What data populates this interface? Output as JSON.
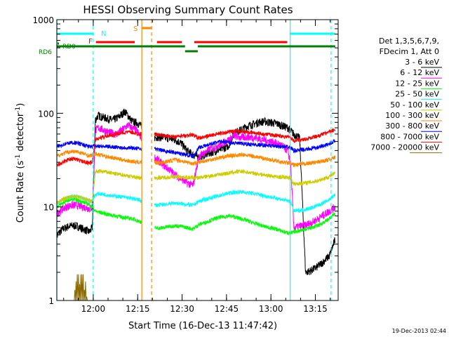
{
  "chart_data": {
    "type": "line",
    "title": "HESSI Observing Summary Count Rates",
    "xlabel": "Start Time (16-Dec-13 11:47:42)",
    "ylabel_main": "Count Rate (s",
    "ylabel_sup1": "-1",
    "ylabel_mid": " detector",
    "ylabel_sup2": "-1",
    "ylabel_end": ")",
    "footer": "19-Dec-2013 02:44",
    "y_scale": "log",
    "ylim": [
      1,
      1000
    ],
    "xlim_minutes": [
      0,
      95
    ],
    "x_ticks": [
      {
        "label": "12:00",
        "minute": 12.3
      },
      {
        "label": "12:15",
        "minute": 27.3
      },
      {
        "label": "12:30",
        "minute": 42.3
      },
      {
        "label": "12:45",
        "minute": 57.3
      },
      {
        "label": "13:00",
        "minute": 72.3
      },
      {
        "label": "13:15",
        "minute": 87.3
      }
    ],
    "y_ticks": [
      {
        "label": "1",
        "value": 1
      },
      {
        "label": "10",
        "value": 10
      },
      {
        "label": "100",
        "value": 100
      },
      {
        "label": "1000",
        "value": 1000
      }
    ],
    "legend_header": [
      "Det 1,3,5,6,7,9,",
      "FDecim 1, Att 0"
    ],
    "series": [
      {
        "name": "3 - 6 keV",
        "color": "#000000",
        "x": [
          0,
          1,
          2,
          3,
          4,
          5,
          6,
          7,
          8,
          9,
          10,
          11,
          12,
          13,
          14,
          15,
          16,
          17,
          18,
          19,
          20,
          21,
          22,
          23,
          24,
          25,
          26,
          27,
          33,
          34,
          36,
          38,
          40,
          42,
          44,
          46,
          48,
          50,
          52,
          54,
          56,
          58,
          60,
          62,
          64,
          66,
          68,
          70,
          72,
          74,
          76,
          78,
          79,
          80,
          82,
          84,
          86,
          88,
          90,
          92,
          94
        ],
        "y": [
          5,
          5.4,
          5.8,
          6,
          6.2,
          6.3,
          6.3,
          6.2,
          6,
          5.8,
          5.6,
          5.4,
          6,
          85,
          95,
          92,
          90,
          88,
          86,
          85,
          88,
          92,
          98,
          105,
          95,
          85,
          80,
          80,
          55,
          56,
          55,
          54,
          52,
          48,
          40,
          36,
          34,
          36,
          38,
          40,
          42,
          45,
          62,
          66,
          72,
          76,
          80,
          82,
          80,
          78,
          74,
          70,
          65,
          60,
          54,
          2,
          2.1,
          2.3,
          2.6,
          3,
          4.5
        ]
      },
      {
        "name": "6 - 12 keV",
        "color": "#ff00ff",
        "x": [
          0,
          1,
          2,
          3,
          4,
          5,
          6,
          7,
          8,
          9,
          10,
          11,
          12,
          13,
          14,
          16,
          18,
          20,
          22,
          24,
          26,
          27,
          33,
          34,
          36,
          38,
          40,
          42,
          44,
          46,
          48,
          50,
          52,
          54,
          56,
          58,
          60,
          62,
          64,
          66,
          68,
          70,
          72,
          74,
          76,
          78,
          79,
          80,
          82,
          84,
          86,
          88,
          90,
          92,
          94
        ],
        "y": [
          8.5,
          9,
          9.5,
          10,
          10.2,
          10.4,
          10.5,
          10.4,
          10.2,
          10,
          9.8,
          9.6,
          9.8,
          65,
          70,
          66,
          62,
          60,
          66,
          75,
          68,
          65,
          34,
          32,
          28,
          25,
          22,
          20,
          18,
          17,
          35,
          38,
          42,
          45,
          48,
          52,
          58,
          55,
          56,
          55,
          54,
          52,
          50,
          48,
          45,
          40,
          28,
          6,
          6.2,
          6.4,
          6.8,
          7.4,
          8.2,
          9,
          10
        ]
      },
      {
        "name": "12 - 25 keV",
        "color": "#00ff00",
        "x": [
          0,
          1,
          2,
          3,
          4,
          5,
          6,
          7,
          8,
          9,
          10,
          11,
          12,
          13,
          14,
          16,
          18,
          20,
          22,
          24,
          26,
          27,
          33,
          34,
          36,
          38,
          40,
          42,
          44,
          46,
          48,
          50,
          52,
          54,
          56,
          58,
          60,
          62,
          64,
          66,
          68,
          70,
          72,
          74,
          76,
          78,
          79,
          80,
          82,
          84,
          86,
          88,
          90,
          92,
          94
        ],
        "y": [
          10,
          10.5,
          11,
          11.5,
          11.8,
          12,
          12,
          11.8,
          11.5,
          11.2,
          11,
          10.5,
          10,
          9,
          8.8,
          8.5,
          8.2,
          8,
          7.8,
          7.6,
          7.4,
          7.2,
          6,
          5.9,
          6,
          6.2,
          6.3,
          6.2,
          6,
          5.8,
          6.5,
          6.8,
          7.2,
          7.6,
          7.8,
          8,
          7.8,
          7.5,
          7.2,
          6.8,
          6.5,
          6.2,
          6,
          5.8,
          5.5,
          5.3,
          5.2,
          5.4,
          5.6,
          5.8,
          6,
          6.3,
          6.8,
          7.5,
          8.5
        ]
      },
      {
        "name": "25 - 50 keV",
        "color": "#00ffff",
        "x": [
          0,
          1,
          2,
          3,
          4,
          5,
          6,
          7,
          8,
          9,
          10,
          11,
          12,
          13,
          14,
          16,
          18,
          20,
          22,
          24,
          26,
          27,
          33,
          34,
          36,
          38,
          40,
          42,
          44,
          46,
          48,
          50,
          52,
          54,
          56,
          58,
          60,
          62,
          64,
          66,
          68,
          70,
          72,
          74,
          76,
          78,
          79,
          80,
          82,
          84,
          86,
          88,
          90,
          92,
          94
        ],
        "y": [
          11,
          11.5,
          12,
          12.3,
          12.6,
          12.8,
          12.9,
          12.8,
          12.5,
          12.2,
          12,
          11.6,
          11.5,
          13.5,
          13.8,
          13.6,
          13.3,
          13,
          12.8,
          12.5,
          12.2,
          12,
          10.5,
          10.4,
          10.6,
          10.8,
          11,
          10.8,
          10.6,
          10.4,
          11.5,
          12,
          12.5,
          13,
          13.5,
          14,
          14.3,
          14.5,
          14.3,
          14,
          13.6,
          13.2,
          12.8,
          12.4,
          12,
          11.6,
          11.4,
          9,
          9.2,
          9.4,
          9.8,
          10.3,
          11,
          12,
          13.5
        ]
      },
      {
        "name": "50 - 100 keV",
        "color": "#cccc00",
        "x": [
          0,
          1,
          2,
          3,
          4,
          5,
          6,
          7,
          8,
          9,
          10,
          11,
          12,
          13,
          14,
          16,
          18,
          20,
          22,
          24,
          26,
          27,
          33,
          34,
          36,
          38,
          40,
          42,
          44,
          46,
          48,
          50,
          52,
          54,
          56,
          58,
          60,
          62,
          64,
          66,
          68,
          70,
          72,
          74,
          76,
          78,
          79,
          80,
          82,
          84,
          86,
          88,
          90,
          92,
          94
        ],
        "y": [
          11,
          11.5,
          12,
          12.3,
          12.6,
          12.8,
          12.9,
          12.8,
          12.5,
          12.2,
          12,
          11.6,
          11.5,
          23.5,
          24,
          23.8,
          23.2,
          22.5,
          22,
          21.5,
          21,
          20.5,
          20.5,
          20.4,
          20.6,
          20.8,
          21,
          20.8,
          20.6,
          20.4,
          20.5,
          21,
          21.5,
          22,
          22.5,
          23,
          23.5,
          24,
          23.5,
          23,
          22.5,
          22,
          21.5,
          21,
          20.8,
          20.6,
          20.5,
          17.5,
          17.8,
          18,
          18.5,
          19,
          20,
          21,
          23
        ]
      },
      {
        "name": "100 - 300 keV",
        "color": "#ff8800",
        "x": [
          0,
          1,
          2,
          3,
          4,
          5,
          6,
          7,
          8,
          9,
          10,
          11,
          12,
          13,
          14,
          16,
          18,
          20,
          22,
          24,
          26,
          27,
          33,
          34,
          36,
          38,
          40,
          42,
          44,
          46,
          48,
          50,
          52,
          54,
          56,
          58,
          60,
          62,
          64,
          66,
          68,
          70,
          72,
          74,
          76,
          78,
          79,
          80,
          82,
          84,
          86,
          88,
          90,
          92,
          94
        ],
        "y": [
          35,
          36,
          37,
          38,
          38.5,
          39,
          39,
          38.5,
          38,
          37,
          36,
          35,
          36,
          37,
          36.5,
          35,
          34,
          33,
          32,
          31,
          30.5,
          30,
          30,
          29.5,
          30,
          31,
          32,
          31,
          30,
          29,
          30,
          31,
          32,
          33,
          34,
          35,
          35.5,
          36,
          35.5,
          35,
          34,
          33,
          32,
          31,
          30,
          29.5,
          29,
          28,
          28.5,
          29,
          29.5,
          30,
          31,
          32,
          34
        ]
      },
      {
        "name": "300 - 800 keV",
        "color": "#0000ff",
        "x": [
          0,
          1,
          2,
          3,
          4,
          5,
          6,
          7,
          8,
          9,
          10,
          11,
          12,
          13,
          14,
          16,
          18,
          20,
          22,
          24,
          26,
          27,
          33,
          34,
          36,
          38,
          40,
          42,
          44,
          46,
          48,
          50,
          52,
          54,
          56,
          58,
          60,
          62,
          64,
          66,
          68,
          70,
          72,
          74,
          76,
          78,
          79,
          80,
          82,
          84,
          86,
          88,
          90,
          92,
          94
        ],
        "y": [
          44,
          45,
          46,
          47,
          48,
          48.5,
          48.5,
          48,
          47,
          46,
          45,
          44,
          44,
          45,
          45,
          44,
          44,
          43.5,
          43,
          43,
          42.5,
          42,
          42,
          41,
          40,
          39,
          38,
          37,
          36,
          35,
          43,
          45,
          47,
          49,
          50,
          49,
          48,
          47.5,
          47,
          46.5,
          46,
          45.5,
          45,
          44.5,
          44,
          43.5,
          43,
          40,
          40.5,
          41,
          42,
          43,
          45,
          47,
          51
        ]
      },
      {
        "name": "800 - 7000 keV",
        "color": "#ff0000",
        "x": [
          0,
          1,
          2,
          3,
          4,
          5,
          6,
          7,
          8,
          9,
          10,
          11,
          12,
          13,
          14,
          16,
          18,
          20,
          22,
          24,
          26,
          27,
          33,
          34,
          36,
          38,
          40,
          42,
          44,
          46,
          48,
          50,
          52,
          54,
          56,
          58,
          60,
          62,
          64,
          66,
          68,
          70,
          72,
          74,
          76,
          78,
          79,
          80,
          82,
          84,
          86,
          88,
          90,
          92,
          94
        ],
        "y": [
          28,
          29,
          30,
          31,
          32,
          32.5,
          32.5,
          32,
          31,
          30.5,
          30,
          29.5,
          30,
          52,
          54,
          56,
          58,
          60,
          62,
          63,
          62,
          60,
          60,
          59,
          58,
          57,
          56,
          57,
          58,
          59,
          54,
          56,
          58,
          60,
          62,
          63,
          64,
          64,
          63,
          62,
          61,
          60,
          59,
          58,
          57,
          56,
          55,
          51,
          52,
          53,
          55,
          57,
          60,
          63,
          67
        ]
      },
      {
        "name": "7000 - 20000 keV",
        "color": "#8b6b00",
        "x": [
          5.9,
          6.1,
          6.3,
          6.5,
          6.7,
          6.9,
          7.1,
          7.3,
          7.5,
          7.7,
          7.9,
          8.1,
          8.3,
          8.5,
          8.7,
          8.9,
          9.1,
          9.3,
          9.5,
          9.7,
          9.9,
          10.1,
          10.3,
          10.5
        ],
        "y": [
          1,
          1.3,
          1,
          1.6,
          1,
          1.9,
          1,
          1.9,
          1,
          1.5,
          1,
          1.9,
          1,
          1.9,
          1,
          1.9,
          1,
          1.3,
          1,
          1.6,
          1,
          1.1,
          1,
          1
        ]
      }
    ],
    "states": [
      {
        "label": "N",
        "color": "#00ffff",
        "segments": [
          [
            -1,
            12.3
          ],
          [
            78.8,
            94
          ]
        ]
      },
      {
        "label": "F",
        "color": "#ff0000",
        "segments": [
          [
            13.2,
            26.3
          ],
          [
            33.8,
            42.2
          ],
          [
            46.4,
            77.8
          ]
        ]
      },
      {
        "label": "S",
        "color": "#ff8800",
        "segments": [
          [
            28.7,
            32
          ]
        ]
      },
      {
        "label": "RD0",
        "color": "#008000",
        "segments": [
          [
            -1,
            0
          ]
        ]
      },
      {
        "label": "RD6",
        "color": "#008000",
        "segments": [
          [
            -1,
            12.3
          ],
          [
            12.3,
            43.3
          ],
          [
            47.6,
            94
          ]
        ]
      }
    ],
    "state_gaps": [
      {
        "color": "#008000",
        "segments": [
          [
            43.3,
            47.6
          ]
        ]
      }
    ],
    "vertical_markers": [
      {
        "minute": 0.0,
        "color": "#00ffff",
        "style": "solid"
      },
      {
        "minute": 12.3,
        "color": "#00ffff",
        "style": "dashed"
      },
      {
        "minute": 28.7,
        "color": "#ff8800",
        "style": "solid"
      },
      {
        "minute": 32.0,
        "color": "#ff8800",
        "style": "dashed"
      },
      {
        "minute": 78.8,
        "color": "#00ffff",
        "style": "solid"
      },
      {
        "minute": 92.6,
        "color": "#00ffff",
        "style": "dashed"
      }
    ]
  }
}
